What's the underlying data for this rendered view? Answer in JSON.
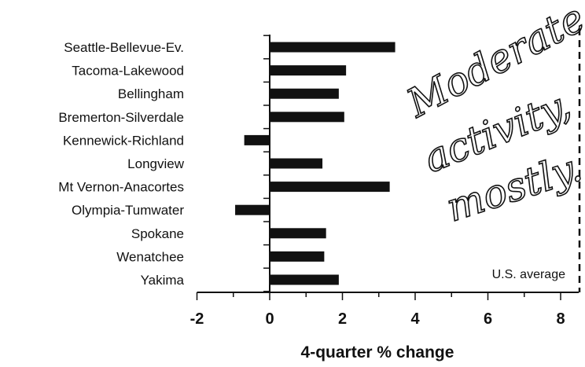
{
  "chart_data": {
    "type": "bar",
    "orientation": "horizontal",
    "categories": [
      "Seattle-Bellevue-Ev.",
      "Tacoma-Lakewood",
      "Bellingham",
      "Bremerton-Silverdale",
      "Kennewick-Richland",
      "Longview",
      "Mt Vernon-Anacortes",
      "Olympia-Tumwater",
      "Spokane",
      "Wenatchee",
      "Yakima"
    ],
    "values": [
      3.45,
      2.1,
      1.9,
      2.05,
      -0.7,
      1.45,
      3.3,
      -0.95,
      1.55,
      1.5,
      1.9
    ],
    "xlabel": "4-quarter % change",
    "ylabel": "",
    "xlim": [
      -2,
      8.5
    ],
    "xticks": [
      -2,
      0,
      2,
      4,
      6,
      8
    ],
    "bar_color": "#111111",
    "reference_line": {
      "label": "U.S. average",
      "value": 8.5,
      "style": "dashed"
    },
    "annotation": [
      "Moderate",
      "activity,",
      "mostly."
    ]
  }
}
